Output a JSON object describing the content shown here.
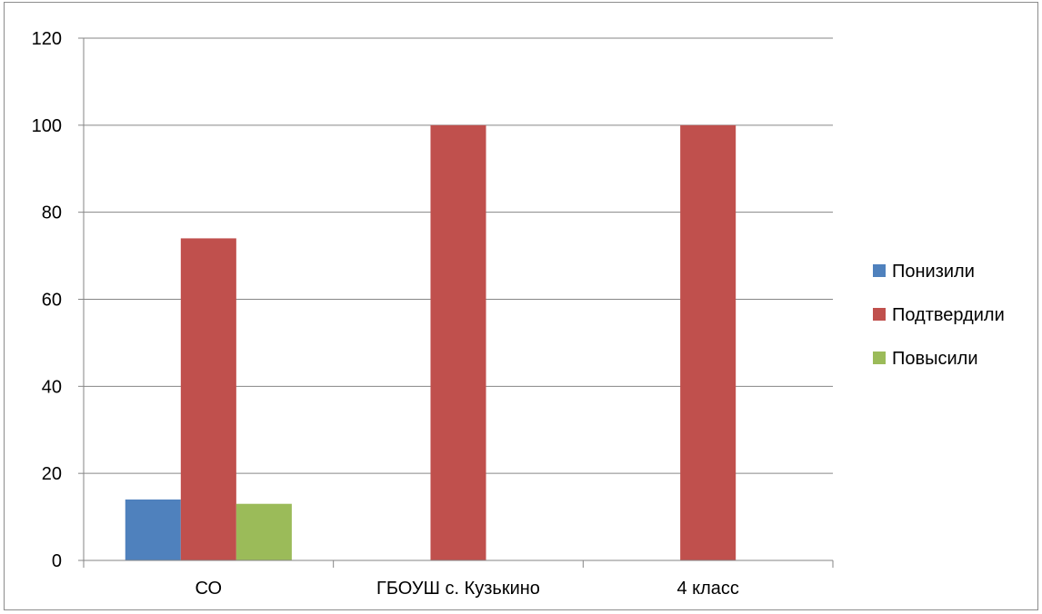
{
  "chart_data": {
    "type": "bar",
    "title": "",
    "xlabel": "",
    "ylabel": "",
    "categories": [
      "СО",
      "ГБОУШ с. Кузькино",
      "4 класс"
    ],
    "series": [
      {
        "name": "Понизили",
        "color": "#4f81bd",
        "values": [
          14,
          0,
          0
        ]
      },
      {
        "name": "Подтвердили",
        "color": "#c0504d",
        "values": [
          74,
          100,
          100
        ]
      },
      {
        "name": "Повысили",
        "color": "#9bbb59",
        "values": [
          13,
          0,
          0
        ]
      }
    ],
    "ylim": [
      0,
      120
    ],
    "yticks": [
      0,
      20,
      40,
      60,
      80,
      100,
      120
    ],
    "grid": true,
    "legend_position": "right"
  }
}
